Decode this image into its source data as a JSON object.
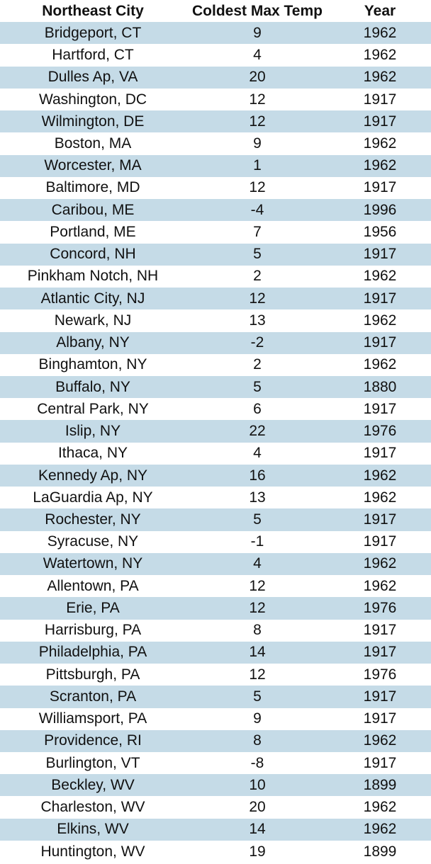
{
  "table": {
    "headers": [
      "Northeast City",
      "Coldest Max Temp",
      "Year"
    ],
    "rows": [
      [
        "Bridgeport, CT",
        "9",
        "1962"
      ],
      [
        "Hartford, CT",
        "4",
        "1962"
      ],
      [
        "Dulles Ap, VA",
        "20",
        "1962"
      ],
      [
        "Washington, DC",
        "12",
        "1917"
      ],
      [
        "Wilmington, DE",
        "12",
        "1917"
      ],
      [
        "Boston, MA",
        "9",
        "1962"
      ],
      [
        "Worcester, MA",
        "1",
        "1962"
      ],
      [
        "Baltimore, MD",
        "12",
        "1917"
      ],
      [
        "Caribou, ME",
        "-4",
        "1996"
      ],
      [
        "Portland, ME",
        "7",
        "1956"
      ],
      [
        "Concord, NH",
        "5",
        "1917"
      ],
      [
        "Pinkham Notch, NH",
        "2",
        "1962"
      ],
      [
        "Atlantic City, NJ",
        "12",
        "1917"
      ],
      [
        "Newark, NJ",
        "13",
        "1962"
      ],
      [
        "Albany, NY",
        "-2",
        "1917"
      ],
      [
        "Binghamton, NY",
        "2",
        "1962"
      ],
      [
        "Buffalo, NY",
        "5",
        "1880"
      ],
      [
        "Central Park, NY",
        "6",
        "1917"
      ],
      [
        "Islip, NY",
        "22",
        "1976"
      ],
      [
        "Ithaca, NY",
        "4",
        "1917"
      ],
      [
        "Kennedy Ap, NY",
        "16",
        "1962"
      ],
      [
        "LaGuardia Ap, NY",
        "13",
        "1962"
      ],
      [
        "Rochester, NY",
        "5",
        "1917"
      ],
      [
        "Syracuse, NY",
        "-1",
        "1917"
      ],
      [
        "Watertown, NY",
        "4",
        "1962"
      ],
      [
        "Allentown, PA",
        "12",
        "1962"
      ],
      [
        "Erie, PA",
        "12",
        "1976"
      ],
      [
        "Harrisburg, PA",
        "8",
        "1917"
      ],
      [
        "Philadelphia, PA",
        "14",
        "1917"
      ],
      [
        "Pittsburgh, PA",
        "12",
        "1976"
      ],
      [
        "Scranton, PA",
        "5",
        "1917"
      ],
      [
        "Williamsport, PA",
        "9",
        "1917"
      ],
      [
        "Providence, RI",
        "8",
        "1962"
      ],
      [
        "Burlington, VT",
        "-8",
        "1917"
      ],
      [
        "Beckley, WV",
        "10",
        "1899"
      ],
      [
        "Charleston, WV",
        "20",
        "1962"
      ],
      [
        "Elkins, WV",
        "14",
        "1962"
      ],
      [
        "Huntington, WV",
        "19",
        "1899"
      ]
    ]
  },
  "colors": {
    "stripe": "#c5dbe7",
    "background": "#ffffff",
    "text": "#111111"
  }
}
